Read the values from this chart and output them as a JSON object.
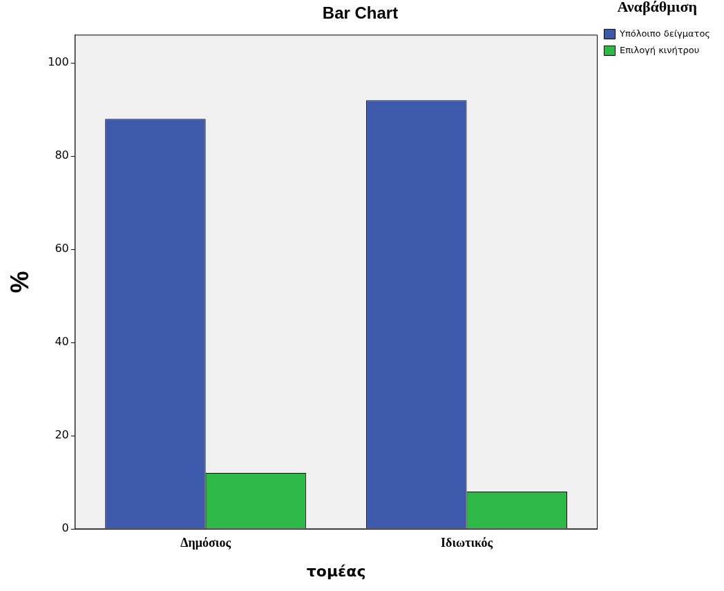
{
  "chart_data": {
    "type": "bar",
    "title": "Bar Chart",
    "xlabel": "τομέας",
    "ylabel": "%",
    "legend_title": "Αναβάθμιση",
    "categories": [
      "Δημόσιος",
      "Ιδιωτικός"
    ],
    "series": [
      {
        "name": "Υπόλοιπο δείγματος",
        "color": "#3e58ac",
        "values": [
          88,
          92
        ]
      },
      {
        "name": "Επιλογή κινήτρου",
        "color": "#2eb848",
        "values": [
          12,
          8
        ]
      }
    ],
    "ylim": [
      0,
      106
    ],
    "yticks": [
      0,
      20,
      40,
      60,
      80,
      100
    ],
    "grid": false,
    "legend": "top right"
  }
}
